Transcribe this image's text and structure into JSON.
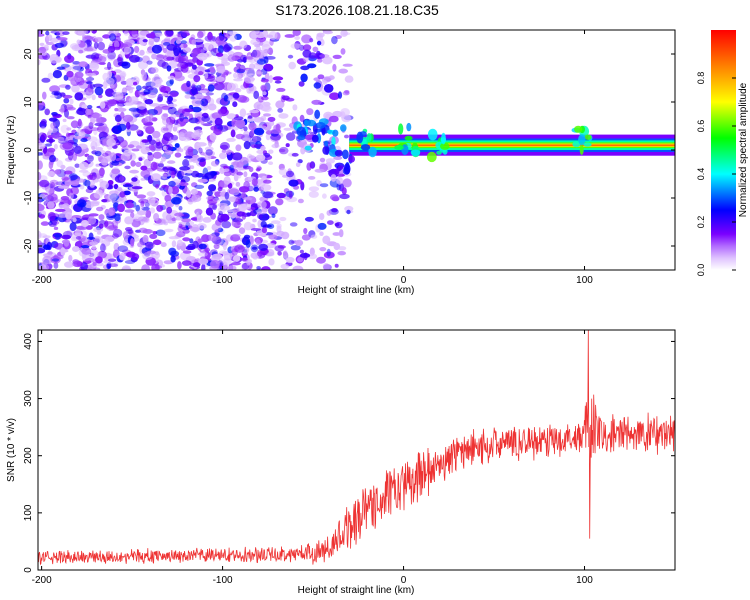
{
  "title": "S173.2026.108.21.18.C35",
  "chart_data": [
    {
      "type": "heatmap",
      "xlabel": "Height of straight line (km)",
      "ylabel": "Frequency (Hz)",
      "xlim": [
        -202,
        150
      ],
      "ylim": [
        -25,
        25
      ],
      "xticks": [
        -200,
        -100,
        0,
        100
      ],
      "yticks": [
        -20,
        -10,
        0,
        10,
        20
      ],
      "colorbar": {
        "label": "Normalized spectral amplitude",
        "range": [
          0,
          1
        ],
        "ticks": [
          "0.0",
          "0.2",
          "0.4",
          "0.6",
          "0.8"
        ],
        "colormap": [
          "#ffffff",
          "#7a00ff",
          "#0000ff",
          "#00ffff",
          "#00ff00",
          "#ffff00",
          "#ff0000"
        ]
      },
      "features": {
        "noise_region_x": [
          -202,
          -40
        ],
        "carrier_line_x": [
          -30,
          150
        ],
        "carrier_frequency_hz": 1,
        "carrier_amplitude": 0.9,
        "bursts": [
          {
            "x": -55,
            "f": 3,
            "amp": 0.35
          },
          {
            "x": -47,
            "f": 5,
            "amp": 0.3
          },
          {
            "x": -38,
            "f": 2,
            "amp": 0.35
          },
          {
            "x": -33,
            "f": -2,
            "amp": 0.25
          },
          {
            "x": -20,
            "f": 1.5,
            "amp": 0.45
          },
          {
            "x": 2,
            "f": 2,
            "amp": 0.5
          },
          {
            "x": 20,
            "f": 1.5,
            "amp": 0.55
          },
          {
            "x": 100,
            "f": 2,
            "amp": 0.5
          }
        ]
      }
    },
    {
      "type": "line",
      "xlabel": "Height of straight line (km)",
      "ylabel": "SNR (10 * v/v)",
      "xlim": [
        -202,
        150
      ],
      "ylim": [
        0,
        420
      ],
      "xticks": [
        -200,
        -100,
        0,
        100
      ],
      "yticks": [
        0,
        100,
        200,
        300,
        400
      ],
      "color": "#ee3333",
      "envelope": {
        "x": [
          -202,
          -150,
          -100,
          -60,
          -40,
          -30,
          -20,
          -10,
          0,
          10,
          20,
          30,
          40,
          50,
          60,
          80,
          95,
          100,
          103,
          106,
          110,
          130,
          150
        ],
        "mean": [
          22,
          24,
          26,
          28,
          35,
          80,
          110,
          130,
          145,
          165,
          185,
          205,
          215,
          220,
          222,
          228,
          232,
          240,
          255,
          240,
          235,
          238,
          240
        ],
        "spread": [
          12,
          12,
          12,
          14,
          25,
          45,
          45,
          45,
          45,
          40,
          35,
          30,
          30,
          30,
          30,
          30,
          30,
          40,
          90,
          50,
          35,
          35,
          35
        ]
      },
      "spikes": [
        {
          "x": 102,
          "y": 420
        },
        {
          "x": 103,
          "y": 55
        }
      ]
    }
  ]
}
